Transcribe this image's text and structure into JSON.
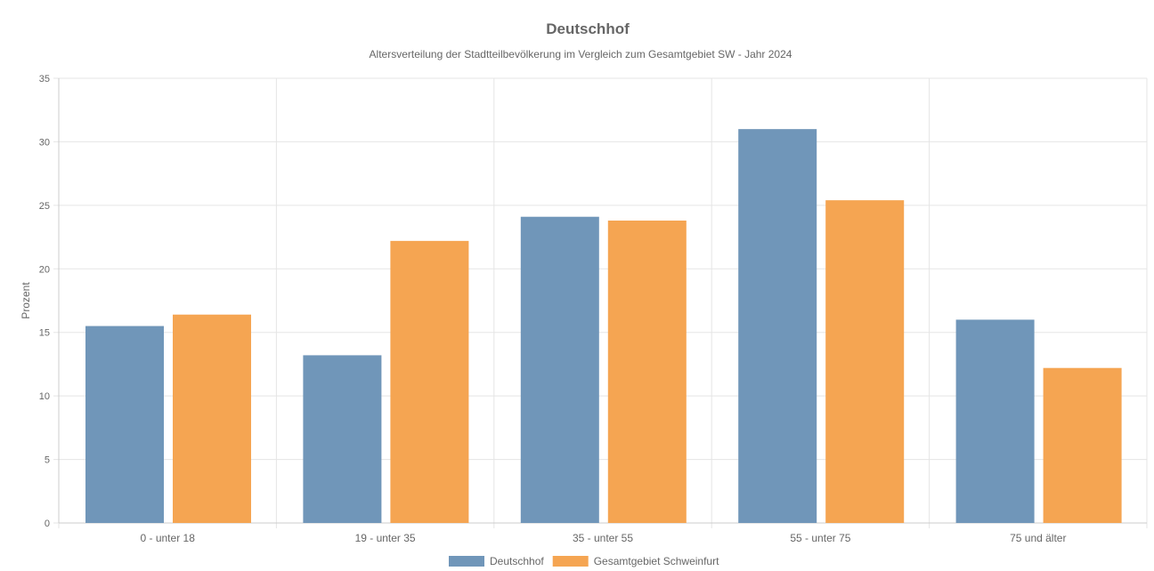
{
  "chart_data": {
    "type": "bar",
    "title": "Deutschhof",
    "subtitle": "Altersverteilung der Stadtteilbevölkerung im Vergleich zum Gesamtgebiet SW - Jahr 2024",
    "xlabel": "",
    "ylabel": "Prozent",
    "ylim": [
      0,
      35
    ],
    "yticks": [
      0,
      5,
      10,
      15,
      20,
      25,
      30,
      35
    ],
    "grid": true,
    "legend_position": "bottom",
    "categories": [
      "0 - unter 18",
      "19 - unter 35",
      "35 - unter 55",
      "55 - unter 75",
      "75 und älter"
    ],
    "series": [
      {
        "name": "Deutschhof",
        "color": "#7096b9",
        "values": [
          15.5,
          13.2,
          24.1,
          31.0,
          16.0
        ]
      },
      {
        "name": "Gesamtgebiet Schweinfurt",
        "color": "#f5a552",
        "values": [
          16.4,
          22.2,
          23.8,
          25.4,
          12.2
        ]
      }
    ]
  }
}
